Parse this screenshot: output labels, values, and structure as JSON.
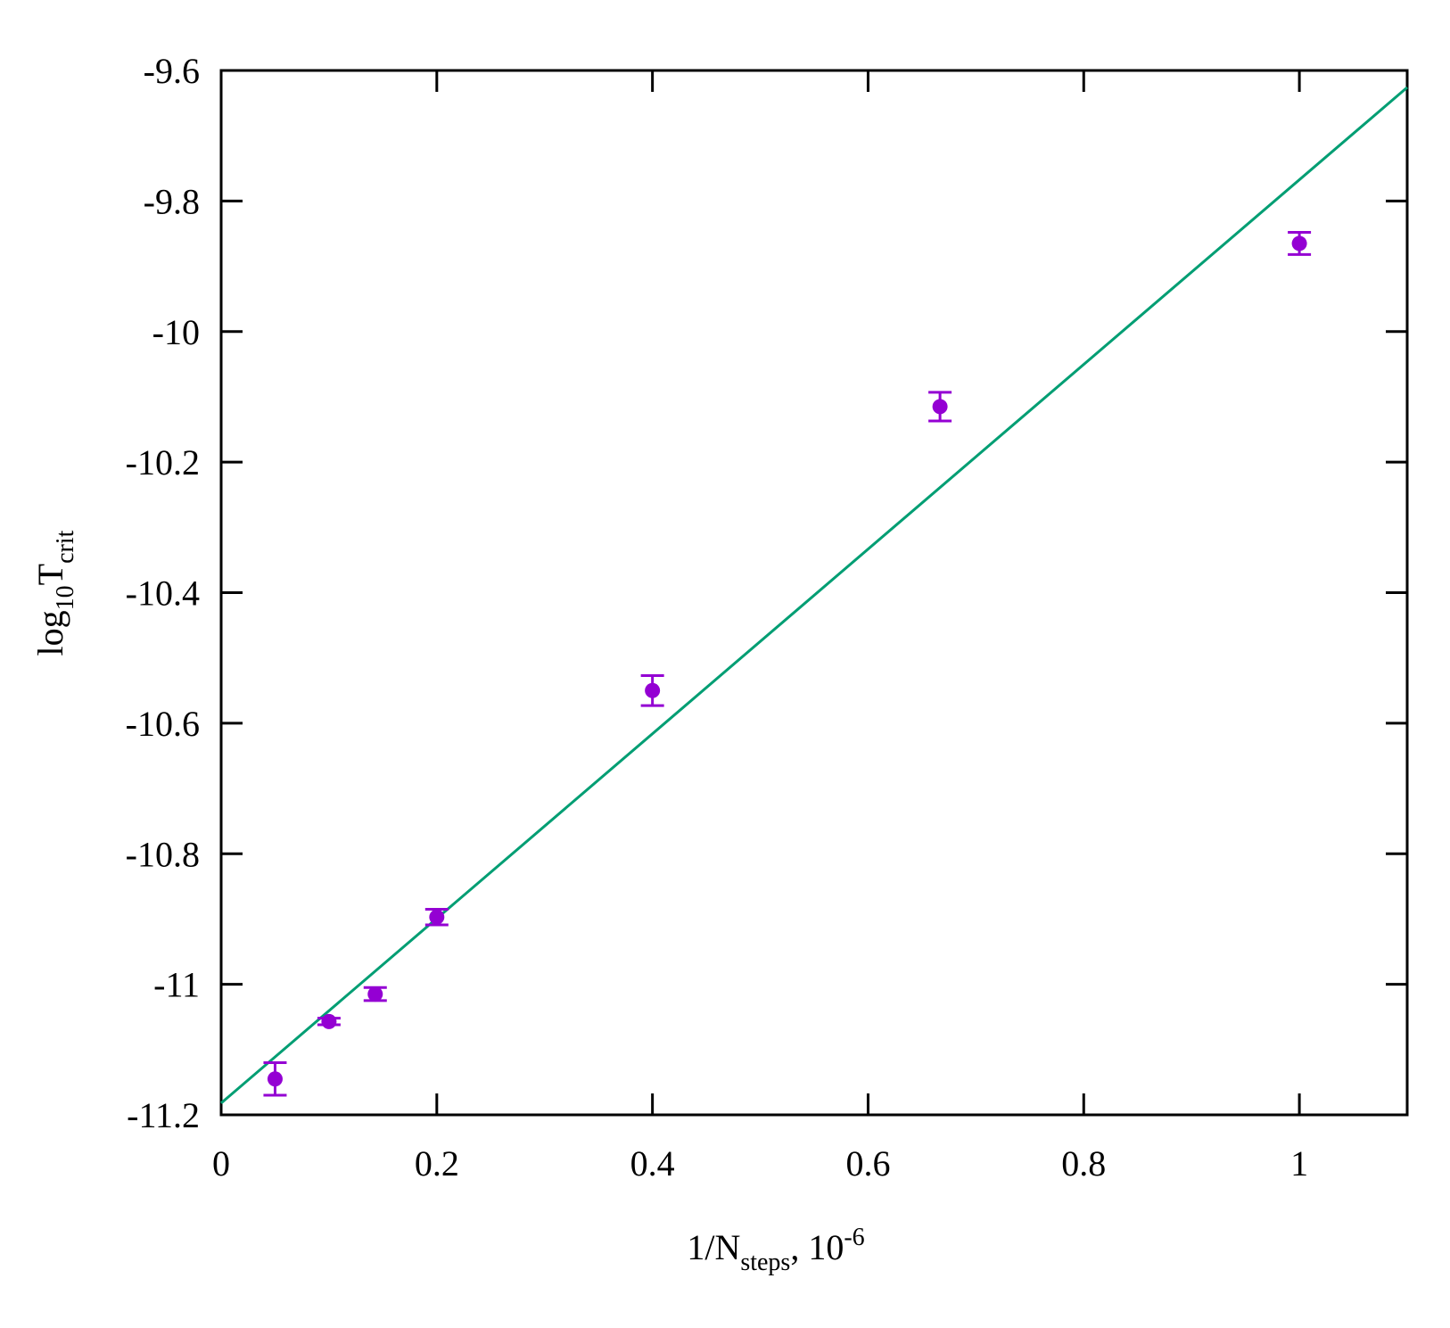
{
  "chart_data": {
    "type": "scatter",
    "title": "",
    "xlabel": {
      "main": "1/N",
      "sub": "steps",
      "suffix": ", 10",
      "sup": "-6"
    },
    "ylabel": {
      "main": "log",
      "sub1": "10",
      "main2": "T",
      "sub2": "crit"
    },
    "xlim": [
      0,
      1.1
    ],
    "ylim": [
      -11.2,
      -9.6
    ],
    "xticks": [
      0,
      0.2,
      0.4,
      0.6,
      0.8,
      1
    ],
    "xtick_labels": [
      "0",
      "0.2",
      "0.4",
      "0.6",
      "0.8",
      "1"
    ],
    "yticks": [
      -11.2,
      -11,
      -10.8,
      -10.6,
      -10.4,
      -10.2,
      -10,
      -9.8,
      -9.6
    ],
    "ytick_labels": [
      "-11.2",
      "-11",
      "-10.8",
      "-10.6",
      "-10.4",
      "-10.2",
      "-10",
      "-9.8",
      "-9.6"
    ],
    "grid": false,
    "series": [
      {
        "kind": "points-with-errorbars",
        "color": "#9400d3",
        "x": [
          0.05,
          0.1,
          0.1429,
          0.2,
          0.4,
          0.6667,
          1.0
        ],
        "y": [
          -11.145,
          -11.057,
          -11.015,
          -10.897,
          -10.55,
          -10.115,
          -9.865
        ],
        "yerr": [
          0.025,
          0.005,
          0.01,
          0.012,
          0.023,
          0.022,
          0.017
        ]
      },
      {
        "kind": "fit-line",
        "color": "#009e73",
        "x": [
          0,
          1.1
        ],
        "y": [
          -11.182,
          -9.626
        ]
      }
    ]
  }
}
